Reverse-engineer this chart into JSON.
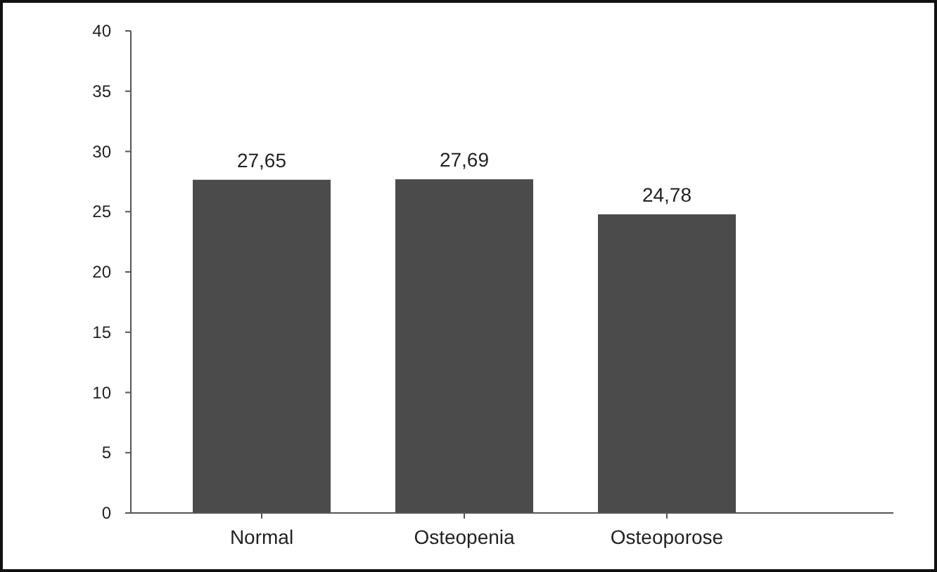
{
  "chart_data": {
    "type": "bar",
    "categories": [
      "Normal",
      "Osteopenia",
      "Osteoporose"
    ],
    "values": [
      27.65,
      27.69,
      24.78
    ],
    "value_labels": [
      "27,65",
      "27,69",
      "24,78"
    ],
    "color": "#4b4b4b",
    "ylim": [
      0,
      40
    ],
    "yticks": [
      0,
      5,
      10,
      15,
      20,
      25,
      30,
      35,
      40
    ],
    "grid": false
  }
}
